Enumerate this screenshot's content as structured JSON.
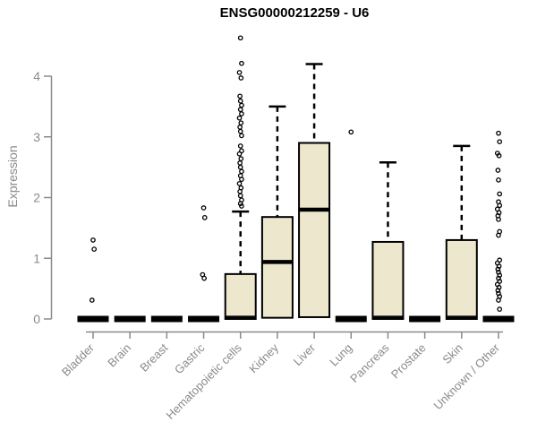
{
  "title": "ENSG00000212259 - U6",
  "y_axis": {
    "label": "Expression",
    "ticks": [
      0,
      1,
      2,
      3,
      4
    ]
  },
  "colors": {
    "box_fill": "#EDE7CD",
    "box_border": "#000000",
    "median": "#000000",
    "outlier": "#000000",
    "axis": "#8a8a8a",
    "title_text": "#000000",
    "background": "#ffffff"
  },
  "chart_data": {
    "type": "boxplot",
    "title": "ENSG00000212259 - U6",
    "xlabel": "",
    "ylabel": "Expression",
    "ylim": [
      0,
      4.7
    ],
    "yticks": [
      0,
      1,
      2,
      3,
      4
    ],
    "grid": false,
    "legend": "none",
    "categories": [
      "Bladder",
      "Brain",
      "Breast",
      "Gastric",
      "Hematopoietic cells",
      "Kidney",
      "Liver",
      "Lung",
      "Pancreas",
      "Prostate",
      "Skin",
      "Unknown / Other"
    ],
    "boxes": [
      {
        "category": "Bladder",
        "whisker_low": 0,
        "q1": 0,
        "median": 0,
        "q3": 0,
        "whisker_high": 0,
        "outliers": [
          1.3,
          1.15,
          0.31
        ]
      },
      {
        "category": "Brain",
        "whisker_low": 0,
        "q1": 0,
        "median": 0,
        "q3": 0,
        "whisker_high": 0,
        "outliers": []
      },
      {
        "category": "Breast",
        "whisker_low": 0,
        "q1": 0,
        "median": 0,
        "q3": 0,
        "whisker_high": 0,
        "outliers": []
      },
      {
        "category": "Gastric",
        "whisker_low": 0,
        "q1": 0,
        "median": 0,
        "q3": 0,
        "whisker_high": 0,
        "outliers": [
          1.83,
          1.67,
          0.73,
          0.67
        ]
      },
      {
        "category": "Hematopoietic cells",
        "whisker_low": 0,
        "q1": 0,
        "median": 0.02,
        "q3": 0.74,
        "whisker_high": 1.77,
        "outliers": [
          4.63,
          4.21,
          4.06,
          3.97,
          3.67,
          3.59,
          3.52,
          3.45,
          3.38,
          3.31,
          3.23,
          3.16,
          3.09,
          3.02,
          2.85,
          2.77,
          2.72,
          2.64,
          2.57,
          2.5,
          2.43,
          2.36,
          2.3,
          2.23,
          2.16,
          2.1,
          2.03,
          1.96,
          1.9,
          1.86
        ]
      },
      {
        "category": "Kidney",
        "whisker_low": 0,
        "q1": 0.02,
        "median": 0.94,
        "q3": 1.68,
        "whisker_high": 3.5,
        "outliers": []
      },
      {
        "category": "Liver",
        "whisker_low": 0,
        "q1": 0.03,
        "median": 1.8,
        "q3": 2.9,
        "whisker_high": 4.2,
        "outliers": []
      },
      {
        "category": "Lung",
        "whisker_low": 0,
        "q1": 0,
        "median": 0,
        "q3": 0,
        "whisker_high": 0,
        "outliers": [
          3.08
        ]
      },
      {
        "category": "Pancreas",
        "whisker_low": 0,
        "q1": 0,
        "median": 0.02,
        "q3": 1.27,
        "whisker_high": 2.58,
        "outliers": []
      },
      {
        "category": "Prostate",
        "whisker_low": 0,
        "q1": 0,
        "median": 0,
        "q3": 0,
        "whisker_high": 0,
        "outliers": []
      },
      {
        "category": "Skin",
        "whisker_low": 0,
        "q1": 0,
        "median": 0.02,
        "q3": 1.3,
        "whisker_high": 2.85,
        "outliers": []
      },
      {
        "category": "Unknown / Other",
        "whisker_low": 0,
        "q1": 0,
        "median": 0,
        "q3": 0,
        "whisker_high": 0,
        "outliers": [
          3.06,
          2.92,
          2.73,
          2.69,
          2.45,
          2.29,
          2.06,
          1.93,
          1.87,
          1.81,
          1.75,
          1.7,
          1.64,
          1.44,
          1.38,
          0.97,
          0.92,
          0.87,
          0.82,
          0.77,
          0.72,
          0.67,
          0.62,
          0.57,
          0.52,
          0.47,
          0.42,
          0.37,
          0.31,
          0.16
        ]
      }
    ]
  }
}
